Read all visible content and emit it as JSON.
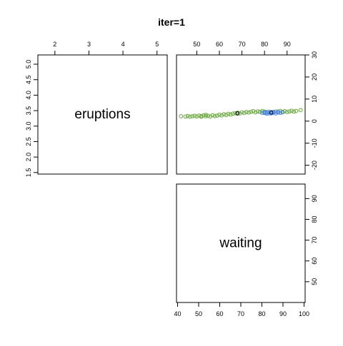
{
  "chart_data": {
    "type": "scatter",
    "title": "iter=1",
    "variables": [
      "eruptions",
      "waiting"
    ],
    "panels": [
      {
        "position": "top-left",
        "kind": "diagonal-label",
        "label": "eruptions",
        "x_axis_side": "top",
        "y_axis_side": "left",
        "xlim": [
          1.5,
          5.3
        ],
        "ylim": [
          1.45,
          5.3
        ],
        "x_ticks": [
          2,
          3,
          4,
          5
        ],
        "x_tick_labels": [
          "2",
          "3",
          "4",
          "5"
        ],
        "y_ticks": [
          1.5,
          2.0,
          2.5,
          3.0,
          3.5,
          4.0,
          4.5,
          5.0
        ],
        "y_tick_labels": [
          "1.5",
          "2.0",
          "2.5",
          "3.0",
          "3.5",
          "4.0",
          "4.5",
          "5.0"
        ]
      },
      {
        "position": "top-right",
        "kind": "scatter",
        "x_axis_side": "top",
        "y_axis_side": "right",
        "xlim": [
          41,
          98
        ],
        "ylim": [
          -24,
          30
        ],
        "x_ticks": [
          50,
          60,
          70,
          80,
          90
        ],
        "x_tick_labels": [
          "50",
          "60",
          "70",
          "80",
          "90"
        ],
        "y_ticks": [
          -20,
          -10,
          0,
          10,
          20,
          30
        ],
        "y_tick_labels": [
          "-20",
          "-10",
          "0",
          "10",
          "20",
          "30"
        ],
        "series": [
          {
            "color": "#70ad47",
            "marker": "open-circle",
            "points": [
              [
                43,
                2.2
              ],
              [
                45,
                2.1
              ],
              [
                46,
                2.3
              ],
              [
                47,
                2.0
              ],
              [
                48,
                2.2
              ],
              [
                49,
                2.4
              ],
              [
                50,
                2.1
              ],
              [
                51,
                2.5
              ],
              [
                52,
                2.3
              ],
              [
                52,
                2.0
              ],
              [
                53,
                2.6
              ],
              [
                54,
                2.2
              ],
              [
                54,
                2.8
              ],
              [
                55,
                2.4
              ],
              [
                56,
                2.1
              ],
              [
                57,
                2.7
              ],
              [
                58,
                2.3
              ],
              [
                59,
                2.5
              ],
              [
                60,
                2.9
              ],
              [
                61,
                2.6
              ],
              [
                62,
                3.1
              ],
              [
                63,
                2.8
              ],
              [
                64,
                3.3
              ],
              [
                65,
                3.0
              ],
              [
                66,
                3.4
              ],
              [
                67,
                3.6
              ],
              [
                68,
                3.8
              ],
              [
                69,
                3.5
              ],
              [
                70,
                4.0
              ],
              [
                71,
                3.7
              ],
              [
                72,
                4.1
              ],
              [
                73,
                3.9
              ],
              [
                74,
                4.2
              ],
              [
                75,
                4.5
              ],
              [
                76,
                4.0
              ],
              [
                77,
                4.4
              ],
              [
                78,
                4.2
              ],
              [
                79,
                4.6
              ],
              [
                80,
                4.3
              ],
              [
                81,
                4.1
              ],
              [
                86,
                4.3
              ],
              [
                87,
                4.6
              ],
              [
                88,
                4.2
              ],
              [
                89,
                4.5
              ],
              [
                90,
                4.1
              ],
              [
                91,
                4.4
              ],
              [
                92,
                4.7
              ],
              [
                93,
                4.3
              ],
              [
                94,
                4.6
              ],
              [
                96,
                5.0
              ]
            ]
          },
          {
            "color": "#4a86e8",
            "marker": "open-circle",
            "points": [
              [
                80,
                3.7
              ],
              [
                81,
                3.9
              ],
              [
                82,
                3.6
              ],
              [
                83,
                4.0
              ],
              [
                84,
                3.8
              ],
              [
                85,
                3.5
              ],
              [
                82,
                4.2
              ],
              [
                84,
                4.1
              ],
              [
                86,
                3.9
              ],
              [
                85,
                4.3
              ],
              [
                83,
                3.5
              ],
              [
                81,
                3.4
              ],
              [
                87,
                3.8
              ],
              [
                88,
                4.0
              ],
              [
                80,
                4.0
              ],
              [
                79,
                3.8
              ]
            ]
          },
          {
            "color": "#000000",
            "marker": "open-circle",
            "points": [
              [
                68,
                3.5
              ],
              [
                83,
                3.9
              ]
            ]
          }
        ]
      },
      {
        "position": "bottom-right",
        "kind": "diagonal-label",
        "label": "waiting",
        "x_axis_side": "bottom",
        "y_axis_side": "right",
        "xlim": [
          39.5,
          100.5
        ],
        "ylim": [
          40,
          97
        ],
        "x_ticks": [
          40,
          50,
          60,
          70,
          80,
          90,
          100
        ],
        "x_tick_labels": [
          "40",
          "50",
          "60",
          "70",
          "80",
          "90",
          "100"
        ],
        "y_ticks": [
          50,
          60,
          70,
          80,
          90
        ],
        "y_tick_labels": [
          "50",
          "60",
          "70",
          "80",
          "90"
        ]
      }
    ]
  }
}
